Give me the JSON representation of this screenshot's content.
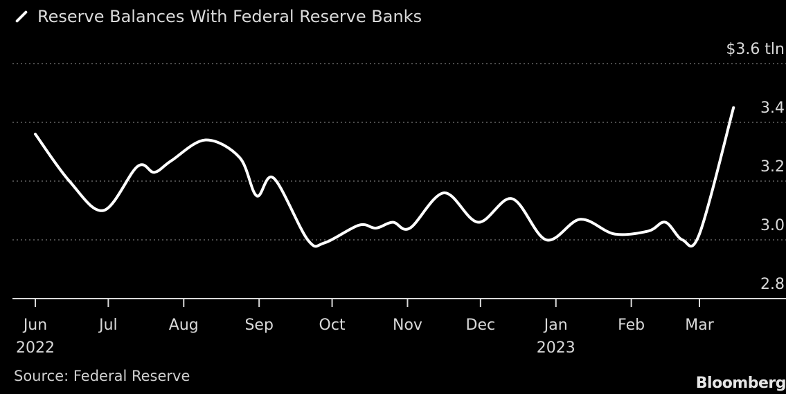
{
  "legend": {
    "series_label": "Reserve Balances With Federal Reserve Banks"
  },
  "footer": {
    "source": "Source: Federal Reserve",
    "brand": "Bloomberg"
  },
  "chart_data": {
    "type": "line",
    "title": "",
    "y_unit_label": "$3.6 tln",
    "ylim": [
      2.8,
      3.6
    ],
    "yticks": [
      {
        "value": 3.6,
        "label": "$3.6 tln"
      },
      {
        "value": 3.4,
        "label": "3.4"
      },
      {
        "value": 3.2,
        "label": "3.2"
      },
      {
        "value": 3.0,
        "label": "3.0"
      },
      {
        "value": 2.8,
        "label": "2.8"
      }
    ],
    "xticks": [
      {
        "date": "2022-06-01",
        "label": "Jun",
        "sublabel": "2022"
      },
      {
        "date": "2022-07-01",
        "label": "Jul",
        "sublabel": ""
      },
      {
        "date": "2022-08-01",
        "label": "Aug",
        "sublabel": ""
      },
      {
        "date": "2022-09-01",
        "label": "Sep",
        "sublabel": ""
      },
      {
        "date": "2022-10-01",
        "label": "Oct",
        "sublabel": ""
      },
      {
        "date": "2022-11-01",
        "label": "Nov",
        "sublabel": ""
      },
      {
        "date": "2022-12-01",
        "label": "Dec",
        "sublabel": ""
      },
      {
        "date": "2023-01-01",
        "label": "Jan",
        "sublabel": "2023"
      },
      {
        "date": "2023-02-01",
        "label": "Feb",
        "sublabel": ""
      },
      {
        "date": "2023-03-01",
        "label": "Mar",
        "sublabel": ""
      }
    ],
    "grid": true,
    "series": [
      {
        "name": "Reserve Balances With Federal Reserve Banks",
        "color": "#ffffff",
        "points": [
          [
            "2022-06-01",
            3.36
          ],
          [
            "2022-06-15",
            3.2
          ],
          [
            "2022-06-29",
            3.1
          ],
          [
            "2022-07-13",
            3.25
          ],
          [
            "2022-07-20",
            3.23
          ],
          [
            "2022-07-27",
            3.27
          ],
          [
            "2022-08-10",
            3.34
          ],
          [
            "2022-08-24",
            3.28
          ],
          [
            "2022-08-31",
            3.15
          ],
          [
            "2022-09-07",
            3.21
          ],
          [
            "2022-09-21",
            3.0
          ],
          [
            "2022-09-28",
            2.99
          ],
          [
            "2022-10-12",
            3.05
          ],
          [
            "2022-10-19",
            3.04
          ],
          [
            "2022-10-26",
            3.06
          ],
          [
            "2022-11-02",
            3.04
          ],
          [
            "2022-11-16",
            3.16
          ],
          [
            "2022-11-30",
            3.06
          ],
          [
            "2022-12-14",
            3.14
          ],
          [
            "2022-12-28",
            3.0
          ],
          [
            "2023-01-11",
            3.07
          ],
          [
            "2023-01-25",
            3.02
          ],
          [
            "2023-02-08",
            3.03
          ],
          [
            "2023-02-15",
            3.06
          ],
          [
            "2023-02-22",
            3.0
          ],
          [
            "2023-03-01",
            3.02
          ],
          [
            "2023-03-15",
            3.45
          ]
        ]
      }
    ]
  }
}
